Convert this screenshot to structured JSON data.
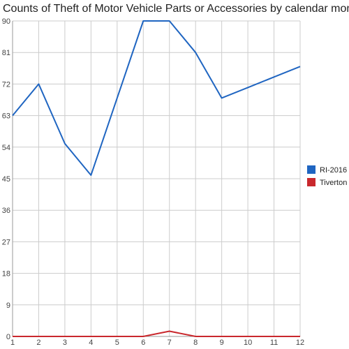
{
  "chart_data": {
    "type": "line",
    "title": "Counts of Theft of Motor Vehicle Parts or Accessories by calendar month",
    "xlabel": "",
    "ylabel": "",
    "x": [
      1,
      2,
      3,
      4,
      5,
      6,
      7,
      8,
      9,
      10,
      11,
      12
    ],
    "x_tick_labels": [
      "1",
      "2",
      "3",
      "4",
      "5",
      "6",
      "7",
      "8",
      "9",
      "10",
      "11",
      "12"
    ],
    "y_ticks": [
      0,
      9,
      18,
      27,
      36,
      45,
      54,
      63,
      72,
      81,
      90
    ],
    "y_tick_labels": [
      "0",
      "9",
      "18",
      "27",
      "36",
      "45",
      "54",
      "63",
      "72",
      "81",
      "90"
    ],
    "ylim": [
      0,
      90
    ],
    "xlim": [
      1,
      12
    ],
    "grid": true,
    "legend_position": "right",
    "series": [
      {
        "name": "RI-2016",
        "color": "#1f65c1",
        "values": [
          63,
          72,
          55,
          46,
          68,
          90,
          90,
          81,
          68,
          71,
          74,
          77
        ]
      },
      {
        "name": "Tiverton",
        "color": "#c9282d",
        "values": [
          0,
          0,
          0,
          0,
          0,
          0,
          1.5,
          0,
          0,
          0,
          0,
          0
        ]
      }
    ]
  }
}
